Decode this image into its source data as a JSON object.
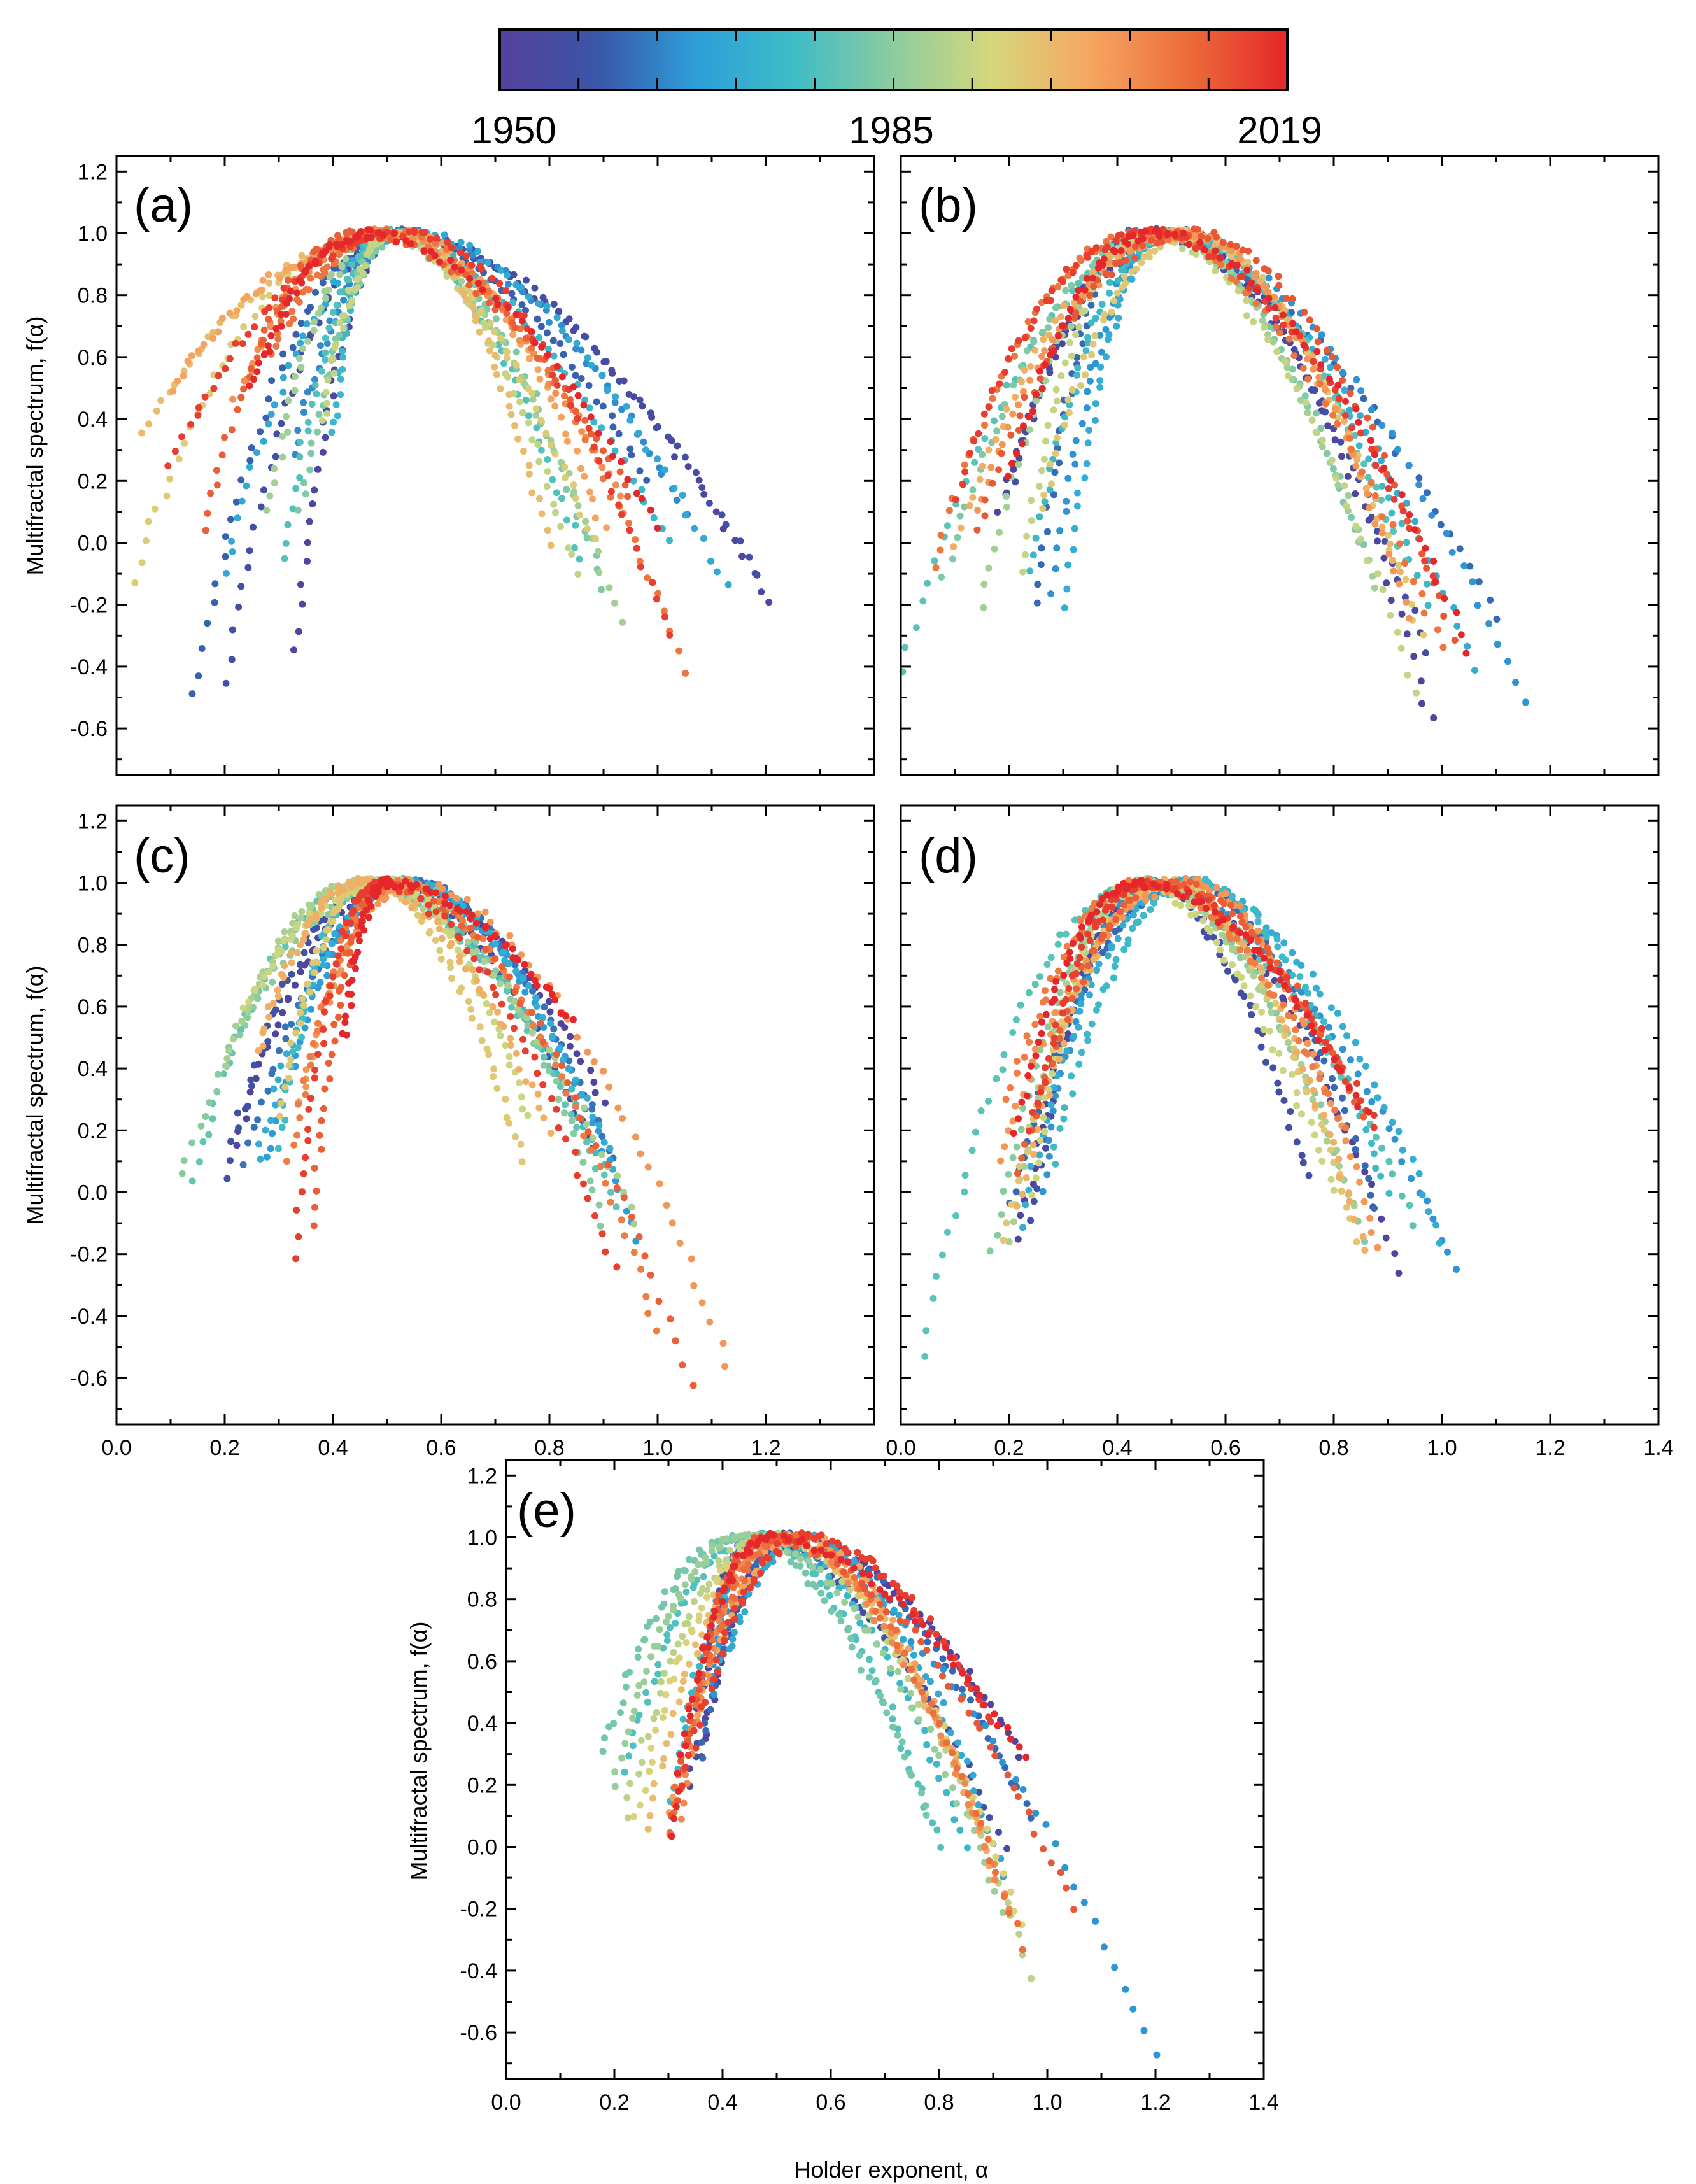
{
  "colorbar": {
    "labels": [
      "1950",
      "1985",
      "2019"
    ],
    "label_years": [
      1950,
      1985,
      2019
    ],
    "start_year": 1950,
    "end_year": 2019,
    "stops": [
      "#55409b",
      "#3a56a8",
      "#2d9fd9",
      "#3fbcc6",
      "#8ccc9f",
      "#d6d77c",
      "#f5a661",
      "#ec6c3a",
      "#e5262a"
    ]
  },
  "chart_data": [
    {
      "id": "a",
      "type": "scatter",
      "panel_label": "(a)",
      "ylabel": "Multifractal spectrum, f(α)",
      "xlabel": "",
      "xlim": [
        0.0,
        1.4
      ],
      "ylim": [
        -0.75,
        1.25
      ],
      "x_ticks": [
        0.0,
        0.2,
        0.4,
        0.6,
        0.8,
        1.0,
        1.2,
        1.4
      ],
      "y_ticks": [
        -0.6,
        -0.4,
        -0.2,
        0.0,
        0.2,
        0.4,
        0.6,
        0.8,
        1.0,
        1.2
      ],
      "y_tick_labels": [
        "-0.6",
        "-0.4",
        "-0.2",
        "0.0",
        "0.2",
        "0.4",
        "0.6",
        "0.8",
        "1.0",
        "1.2"
      ],
      "x_tick_labels": [],
      "curves": [
        {
          "year": 1953,
          "left": 0.33,
          "right": 1.21,
          "min_left": -0.35,
          "min_right": -0.2
        },
        {
          "year": 1956,
          "left": 0.2,
          "right": 1.18,
          "min_left": -0.45,
          "min_right": -0.1
        },
        {
          "year": 1960,
          "left": 0.14,
          "right": 0.98,
          "min_left": -0.5,
          "min_right": 0.2
        },
        {
          "year": 1965,
          "left": 0.33,
          "right": 1.05,
          "min_left": 0.3,
          "min_right": 0.1
        },
        {
          "year": 1970,
          "left": 0.2,
          "right": 1.13,
          "min_left": -0.1,
          "min_right": -0.15
        },
        {
          "year": 1974,
          "left": 0.4,
          "right": 1.02,
          "min_left": 0.35,
          "min_right": 0.0
        },
        {
          "year": 1978,
          "left": 0.31,
          "right": 0.86,
          "min_left": -0.05,
          "min_right": -0.05
        },
        {
          "year": 1983,
          "left": 0.34,
          "right": 0.9,
          "min_left": 0.1,
          "min_right": -0.15
        },
        {
          "year": 1987,
          "left": 0.28,
          "right": 0.93,
          "min_left": 0.1,
          "min_right": -0.25
        },
        {
          "year": 1991,
          "left": 0.38,
          "right": 0.85,
          "min_left": 0.4,
          "min_right": -0.1
        },
        {
          "year": 1995,
          "left": 0.03,
          "right": 0.88,
          "min_left": -0.12,
          "min_right": 0.0
        },
        {
          "year": 1998,
          "left": 0.05,
          "right": 0.8,
          "min_left": 0.35,
          "min_right": 0.0
        },
        {
          "year": 2002,
          "left": 0.1,
          "right": 0.9,
          "min_left": 0.5,
          "min_right": 0.05
        },
        {
          "year": 2005,
          "left": 0.22,
          "right": 0.94,
          "min_left": 0.45,
          "min_right": 0.1
        },
        {
          "year": 2009,
          "left": 0.28,
          "right": 1.05,
          "min_left": 0.6,
          "min_right": -0.42
        },
        {
          "year": 2012,
          "left": 0.16,
          "right": 0.95,
          "min_left": 0.05,
          "min_right": 0.15
        },
        {
          "year": 2016,
          "left": 0.1,
          "right": 1.02,
          "min_left": 0.25,
          "min_right": -0.3
        },
        {
          "year": 2019,
          "left": 0.25,
          "right": 1.0,
          "min_left": 0.5,
          "min_right": 0.05
        }
      ]
    },
    {
      "id": "b",
      "type": "scatter",
      "panel_label": "(b)",
      "ylabel": "",
      "xlabel": "",
      "xlim": [
        0.0,
        1.4
      ],
      "ylim": [
        -0.75,
        1.25
      ],
      "x_ticks": [
        0.0,
        0.2,
        0.4,
        0.6,
        0.8,
        1.0,
        1.2,
        1.4
      ],
      "y_ticks": [
        -0.6,
        -0.4,
        -0.2,
        0.0,
        0.2,
        0.4,
        0.6,
        0.8,
        1.0,
        1.2
      ],
      "y_tick_labels": [],
      "x_tick_labels": [],
      "curves": [
        {
          "year": 1952,
          "left": 0.18,
          "right": 0.98,
          "min_left": 0.1,
          "min_right": -0.58
        },
        {
          "year": 1956,
          "left": 0.2,
          "right": 0.97,
          "min_left": 0.15,
          "min_right": -0.35
        },
        {
          "year": 1961,
          "left": 0.25,
          "right": 1.1,
          "min_left": -0.2,
          "min_right": -0.25
        },
        {
          "year": 1966,
          "left": 0.28,
          "right": 1.15,
          "min_left": -0.15,
          "min_right": -0.52
        },
        {
          "year": 1971,
          "left": 0.3,
          "right": 1.06,
          "min_left": -0.2,
          "min_right": -0.4
        },
        {
          "year": 1975,
          "left": 0.24,
          "right": 0.98,
          "min_left": -0.1,
          "min_right": -0.2
        },
        {
          "year": 1979,
          "left": 0.0,
          "right": 0.93,
          "min_left": -0.42,
          "min_right": -0.05
        },
        {
          "year": 1983,
          "left": 0.08,
          "right": 0.85,
          "min_left": -0.1,
          "min_right": 0.0
        },
        {
          "year": 1987,
          "left": 0.15,
          "right": 0.88,
          "min_left": -0.2,
          "min_right": -0.15
        },
        {
          "year": 1991,
          "left": 0.22,
          "right": 0.95,
          "min_left": -0.1,
          "min_right": -0.48
        },
        {
          "year": 1996,
          "left": 0.26,
          "right": 0.96,
          "min_left": 0.1,
          "min_right": -0.3
        },
        {
          "year": 2000,
          "left": 0.1,
          "right": 0.92,
          "min_left": 0.0,
          "min_right": -0.1
        },
        {
          "year": 2004,
          "left": 0.14,
          "right": 0.94,
          "min_left": 0.1,
          "min_right": -0.25
        },
        {
          "year": 2009,
          "left": 0.06,
          "right": 1.0,
          "min_left": -0.08,
          "min_right": -0.35
        },
        {
          "year": 2013,
          "left": 0.14,
          "right": 1.02,
          "min_left": 0.05,
          "min_right": -0.3
        },
        {
          "year": 2016,
          "left": 0.1,
          "right": 0.98,
          "min_left": 0.15,
          "min_right": -0.1
        },
        {
          "year": 2019,
          "left": 0.2,
          "right": 1.05,
          "min_left": 0.2,
          "min_right": -0.35
        }
      ]
    },
    {
      "id": "c",
      "type": "scatter",
      "panel_label": "(c)",
      "ylabel": "Multifractal spectrum, f(α)",
      "xlabel": "",
      "xlim": [
        0.0,
        1.4
      ],
      "ylim": [
        -0.75,
        1.25
      ],
      "x_ticks": [
        0.0,
        0.2,
        0.4,
        0.6,
        0.8,
        1.0,
        1.2,
        1.4
      ],
      "y_ticks": [
        -0.6,
        -0.4,
        -0.2,
        0.0,
        0.2,
        0.4,
        0.6,
        0.8,
        1.0,
        1.2
      ],
      "y_tick_labels": [
        "-0.6",
        "-0.4",
        "-0.2",
        "0.0",
        "0.2",
        "0.4",
        "0.6",
        "0.8",
        "1.0",
        "1.2"
      ],
      "x_tick_labels": [
        "0.0",
        "0.2",
        "0.4",
        "0.6",
        "0.8",
        "1.0",
        "1.2"
      ],
      "curves": [
        {
          "year": 1952,
          "left": 0.22,
          "right": 0.9,
          "min_left": 0.15,
          "min_right": 0.3
        },
        {
          "year": 1957,
          "left": 0.2,
          "right": 0.88,
          "min_left": 0.05,
          "min_right": 0.15
        },
        {
          "year": 1962,
          "left": 0.24,
          "right": 0.92,
          "min_left": 0.1,
          "min_right": 0.1
        },
        {
          "year": 1967,
          "left": 0.28,
          "right": 0.96,
          "min_left": 0.1,
          "min_right": -0.15
        },
        {
          "year": 1971,
          "left": 0.26,
          "right": 0.94,
          "min_left": 0.1,
          "min_right": 0.0
        },
        {
          "year": 1976,
          "left": 0.3,
          "right": 0.9,
          "min_left": 0.15,
          "min_right": 0.1
        },
        {
          "year": 1980,
          "left": 0.14,
          "right": 0.92,
          "min_left": 0.05,
          "min_right": -0.05
        },
        {
          "year": 1984,
          "left": 0.12,
          "right": 0.9,
          "min_left": 0.05,
          "min_right": -0.1
        },
        {
          "year": 1988,
          "left": 0.2,
          "right": 0.96,
          "min_left": 0.4,
          "min_right": -0.1
        },
        {
          "year": 1992,
          "left": 0.24,
          "right": 0.76,
          "min_left": 0.6,
          "min_right": 0.25
        },
        {
          "year": 1996,
          "left": 0.3,
          "right": 0.75,
          "min_left": 0.25,
          "min_right": 0.1
        },
        {
          "year": 2000,
          "left": 0.26,
          "right": 0.8,
          "min_left": 0.45,
          "min_right": 0.2
        },
        {
          "year": 2004,
          "left": 0.34,
          "right": 1.13,
          "min_left": 0.3,
          "min_right": -0.56
        },
        {
          "year": 2008,
          "left": 0.32,
          "right": 1.0,
          "min_left": 0.1,
          "min_right": -0.45
        },
        {
          "year": 2012,
          "left": 0.36,
          "right": 1.06,
          "min_left": -0.1,
          "min_right": -0.63
        },
        {
          "year": 2016,
          "left": 0.33,
          "right": 0.92,
          "min_left": -0.2,
          "min_right": -0.25
        },
        {
          "year": 2019,
          "left": 0.42,
          "right": 0.84,
          "min_left": 0.5,
          "min_right": 0.55
        }
      ]
    },
    {
      "id": "d",
      "type": "scatter",
      "panel_label": "(d)",
      "ylabel": "",
      "xlabel": "",
      "xlim": [
        0.0,
        1.4
      ],
      "ylim": [
        -0.75,
        1.25
      ],
      "x_ticks": [
        0.0,
        0.2,
        0.4,
        0.6,
        0.8,
        1.0,
        1.2,
        1.4
      ],
      "y_ticks": [
        -0.6,
        -0.4,
        -0.2,
        0.0,
        0.2,
        0.4,
        0.6,
        0.8,
        1.0,
        1.2
      ],
      "y_tick_labels": [],
      "x_tick_labels": [
        "0.0",
        "0.2",
        "0.4",
        "0.6",
        "0.8",
        "1.0",
        "1.2",
        "1.4"
      ],
      "curves": [
        {
          "year": 1952,
          "left": 0.22,
          "right": 0.92,
          "min_left": -0.15,
          "min_right": -0.25
        },
        {
          "year": 1956,
          "left": 0.24,
          "right": 0.75,
          "min_left": -0.1,
          "min_right": 0.05
        },
        {
          "year": 1961,
          "left": 0.2,
          "right": 0.88,
          "min_left": -0.05,
          "min_right": -0.05
        },
        {
          "year": 1966,
          "left": 0.26,
          "right": 1.03,
          "min_left": 0.0,
          "min_right": -0.26
        },
        {
          "year": 1971,
          "left": 0.22,
          "right": 1.0,
          "min_left": -0.1,
          "min_right": -0.15
        },
        {
          "year": 1975,
          "left": 0.28,
          "right": 0.9,
          "min_left": 0.1,
          "min_right": 0.0
        },
        {
          "year": 1979,
          "left": 0.04,
          "right": 0.95,
          "min_left": -0.52,
          "min_right": -0.1
        },
        {
          "year": 1984,
          "left": 0.17,
          "right": 0.86,
          "min_left": -0.2,
          "min_right": -0.15
        },
        {
          "year": 1988,
          "left": 0.2,
          "right": 0.84,
          "min_left": -0.15,
          "min_right": -0.05
        },
        {
          "year": 1992,
          "left": 0.24,
          "right": 0.8,
          "min_left": 0.0,
          "min_right": 0.0
        },
        {
          "year": 1996,
          "left": 0.19,
          "right": 0.84,
          "min_left": -0.15,
          "min_right": -0.15
        },
        {
          "year": 2000,
          "left": 0.22,
          "right": 0.86,
          "min_left": -0.05,
          "min_right": -0.2
        },
        {
          "year": 2004,
          "left": 0.18,
          "right": 0.88,
          "min_left": 0.1,
          "min_right": -0.18
        },
        {
          "year": 2008,
          "left": 0.2,
          "right": 0.82,
          "min_left": 0.3,
          "min_right": 0.2
        },
        {
          "year": 2012,
          "left": 0.22,
          "right": 0.85,
          "min_left": 0.05,
          "min_right": 0.25
        },
        {
          "year": 2016,
          "left": 0.24,
          "right": 0.88,
          "min_left": 0.2,
          "min_right": 0.2
        },
        {
          "year": 2019,
          "left": 0.21,
          "right": 0.86,
          "min_left": 0.2,
          "min_right": 0.25
        }
      ]
    },
    {
      "id": "e",
      "type": "scatter",
      "panel_label": "(e)",
      "ylabel": "Multifractal spectrum, f(α)",
      "xlabel": "Holder exponent, α",
      "xlim": [
        0.0,
        1.4
      ],
      "ylim": [
        -0.75,
        1.25
      ],
      "x_ticks": [
        0.0,
        0.2,
        0.4,
        0.6,
        0.8,
        1.0,
        1.2,
        1.4
      ],
      "y_ticks": [
        -0.6,
        -0.4,
        -0.2,
        0.0,
        0.2,
        0.4,
        0.6,
        0.8,
        1.0,
        1.2
      ],
      "y_tick_labels": [
        "-0.6",
        "-0.4",
        "-0.2",
        "0.0",
        "0.2",
        "0.4",
        "0.6",
        "0.8",
        "1.0",
        "1.2"
      ],
      "x_tick_labels": [
        "0.0",
        "0.2",
        "0.4",
        "0.6",
        "0.8",
        "1.0",
        "1.2",
        "1.4"
      ],
      "curves": [
        {
          "year": 1952,
          "left": 0.36,
          "right": 0.95,
          "min_left": 0.3,
          "min_right": 0.3
        },
        {
          "year": 1956,
          "left": 0.34,
          "right": 0.92,
          "min_left": 0.2,
          "min_right": 0.0
        },
        {
          "year": 1961,
          "left": 0.36,
          "right": 0.97,
          "min_left": 0.3,
          "min_right": 0.1
        },
        {
          "year": 1966,
          "left": 0.38,
          "right": 1.2,
          "min_left": 0.5,
          "min_right": -0.68
        },
        {
          "year": 1970,
          "left": 0.4,
          "right": 0.92,
          "min_left": 0.6,
          "min_right": -0.1
        },
        {
          "year": 1974,
          "left": 0.3,
          "right": 0.85,
          "min_left": 0.1,
          "min_right": 0.0
        },
        {
          "year": 1978,
          "left": 0.22,
          "right": 0.8,
          "min_left": 0.25,
          "min_right": 0.0
        },
        {
          "year": 1982,
          "left": 0.18,
          "right": 0.78,
          "min_left": 0.3,
          "min_right": 0.1
        },
        {
          "year": 1986,
          "left": 0.2,
          "right": 0.92,
          "min_left": 0.2,
          "min_right": -0.2
        },
        {
          "year": 1990,
          "left": 0.22,
          "right": 0.97,
          "min_left": 0.1,
          "min_right": -0.42
        },
        {
          "year": 1994,
          "left": 0.24,
          "right": 0.95,
          "min_left": 0.1,
          "min_right": -0.25
        },
        {
          "year": 1998,
          "left": 0.26,
          "right": 0.88,
          "min_left": 0.05,
          "min_right": 0.05
        },
        {
          "year": 2002,
          "left": 0.3,
          "right": 0.9,
          "min_left": 0.05,
          "min_right": -0.1
        },
        {
          "year": 2006,
          "left": 0.32,
          "right": 0.93,
          "min_left": 0.1,
          "min_right": -0.2
        },
        {
          "year": 2010,
          "left": 0.3,
          "right": 0.95,
          "min_left": 0.05,
          "min_right": -0.32
        },
        {
          "year": 2013,
          "left": 0.31,
          "right": 1.05,
          "min_left": 0.1,
          "min_right": -0.2
        },
        {
          "year": 2016,
          "left": 0.33,
          "right": 0.9,
          "min_left": 0.2,
          "min_right": 0.4
        },
        {
          "year": 2019,
          "left": 0.3,
          "right": 0.96,
          "min_left": 0.04,
          "min_right": 0.28
        }
      ]
    }
  ]
}
